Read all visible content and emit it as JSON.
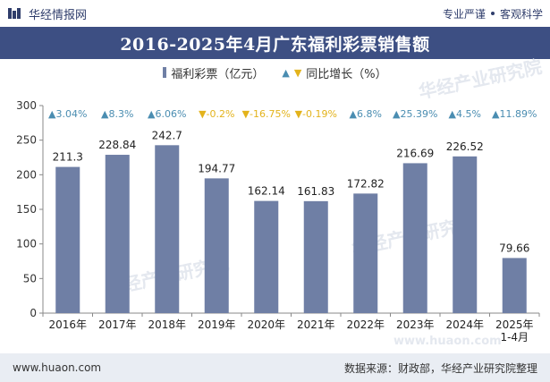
{
  "header": {
    "brand": "华经情报网",
    "tagline_left": "专业严谨",
    "tagline_right": "客观科学"
  },
  "chart_data": {
    "type": "bar",
    "title": "2016-2025年4月广东福利彩票销售额",
    "categories": [
      "2016年",
      "2017年",
      "2018年",
      "2019年",
      "2020年",
      "2021年",
      "2022年",
      "2023年",
      "2024年",
      "2025年\n1-4月"
    ],
    "series": [
      {
        "name": "福利彩票（亿元）",
        "values": [
          211.3,
          228.84,
          242.7,
          194.77,
          162.14,
          161.83,
          172.82,
          216.69,
          226.52,
          79.66
        ],
        "color": "#6f7fa5"
      },
      {
        "name": "同比增长（%）",
        "values": [
          3.04,
          8.3,
          6.06,
          -0.2,
          -16.75,
          -0.19,
          6.8,
          25.39,
          4.5,
          11.89
        ],
        "labels": [
          "3.04%",
          "8.3%",
          "6.06%",
          "-0.2%",
          "-16.75%",
          "-0.19%",
          "6.8%",
          "25.39%",
          "4.5%",
          "11.89%"
        ],
        "color_up": "#4a8db1",
        "color_down": "#e3b31c"
      }
    ],
    "ylim": [
      0,
      300
    ],
    "yticks": [
      0,
      50,
      100,
      150,
      200,
      250,
      300
    ],
    "legend_position": "top-center"
  },
  "watermark": "华经产业研究院",
  "watermark_url": "www.huaon.com",
  "footer": {
    "left": "www.huaon.com",
    "right": "数据来源：财政部，华经产业研究院整理"
  },
  "colors": {
    "title_bg": "#3d4f83",
    "bar": "#6f7fa5",
    "up": "#4a8db1",
    "down": "#e3b31c",
    "footer_bg": "#e9edf3"
  }
}
